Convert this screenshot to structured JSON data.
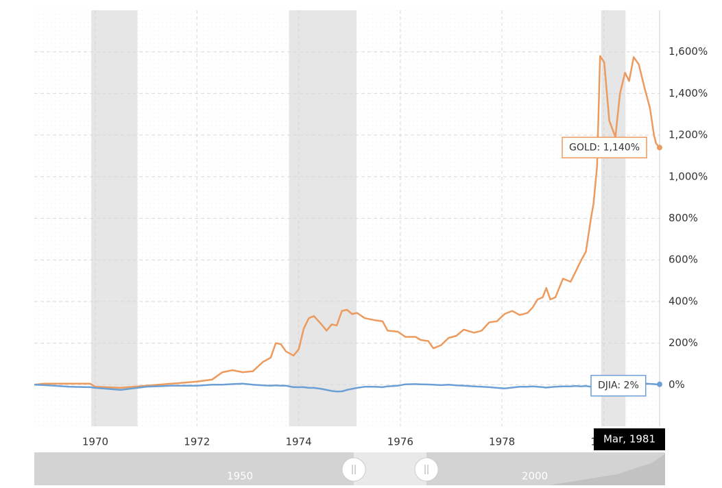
{
  "chart_data": {
    "type": "line",
    "x": [
      1968.8,
      1969.0,
      1969.5,
      1969.9,
      1970.0,
      1970.5,
      1971.0,
      1971.5,
      1972.0,
      1972.3,
      1972.5,
      1972.7,
      1972.9,
      1973.1,
      1973.3,
      1973.45,
      1973.55,
      1973.65,
      1973.75,
      1973.9,
      1974.0,
      1974.1,
      1974.2,
      1974.3,
      1974.45,
      1974.55,
      1974.65,
      1974.75,
      1974.85,
      1974.95,
      1975.05,
      1975.15,
      1975.3,
      1975.5,
      1975.65,
      1975.75,
      1975.95,
      1976.1,
      1976.3,
      1976.4,
      1976.55,
      1976.65,
      1976.8,
      1976.95,
      1977.1,
      1977.25,
      1977.45,
      1977.6,
      1977.75,
      1977.9,
      1978.05,
      1978.2,
      1978.35,
      1978.5,
      1978.6,
      1978.7,
      1978.8,
      1978.87,
      1978.95,
      1979.05,
      1979.2,
      1979.35,
      1979.45,
      1979.55,
      1979.65,
      1979.75,
      1979.8,
      1979.87,
      1979.93,
      1980.01,
      1980.11,
      1980.23,
      1980.32,
      1980.42,
      1980.5,
      1980.59,
      1980.69,
      1980.8,
      1980.91,
      1980.99,
      1981.03,
      1981.1
    ],
    "series": [
      {
        "label": "GOLD: 1,140%",
        "color": "#ec9a5d",
        "values": [
          0,
          5,
          5,
          5,
          -10,
          -15,
          -5,
          5,
          15,
          25,
          60,
          70,
          60,
          65,
          110,
          130,
          200,
          195,
          160,
          140,
          170,
          270,
          320,
          330,
          290,
          260,
          290,
          285,
          355,
          360,
          340,
          345,
          320,
          310,
          305,
          260,
          255,
          230,
          230,
          215,
          210,
          175,
          190,
          225,
          235,
          265,
          250,
          260,
          300,
          305,
          340,
          355,
          335,
          345,
          370,
          410,
          420,
          465,
          410,
          420,
          510,
          495,
          545,
          595,
          640,
          800,
          870,
          1050,
          1580,
          1550,
          1270,
          1190,
          1400,
          1500,
          1460,
          1575,
          1540,
          1430,
          1330,
          1200,
          1160,
          1140
        ]
      },
      {
        "label": "DJIA: 2%",
        "color": "#6b9fd6",
        "values": [
          0,
          -2,
          -10,
          -12,
          -15,
          -25,
          -10,
          -5,
          -5,
          0,
          0,
          3,
          5,
          0,
          -3,
          -5,
          -3,
          -5,
          -5,
          -12,
          -12,
          -12,
          -15,
          -15,
          -20,
          -25,
          -30,
          -33,
          -32,
          -25,
          -20,
          -15,
          -10,
          -10,
          -12,
          -8,
          -5,
          2,
          3,
          2,
          1,
          0,
          -2,
          0,
          -3,
          -5,
          -8,
          -10,
          -12,
          -15,
          -18,
          -14,
          -10,
          -10,
          -8,
          -10,
          -12,
          -14,
          -12,
          -10,
          -8,
          -8,
          -6,
          -8,
          -6,
          -10,
          -8,
          -6,
          -5,
          -4,
          -8,
          -10,
          -3,
          0,
          2,
          4,
          5,
          6,
          4,
          3,
          2,
          2
        ]
      }
    ],
    "recessions": [
      [
        1969.92,
        1970.83
      ],
      [
        1973.81,
        1975.14
      ],
      [
        1979.95,
        1980.43
      ]
    ],
    "xlim": [
      1968.8,
      1981.1
    ],
    "xticks": [
      1970,
      1972,
      1974,
      1976,
      1978,
      1980
    ],
    "ylim": [
      -200,
      1800
    ],
    "yticks": [
      {
        "value": 0,
        "label": "0%"
      },
      {
        "value": 200,
        "label": "200%"
      },
      {
        "value": 400,
        "label": "400%"
      },
      {
        "value": 600,
        "label": "600%"
      },
      {
        "value": 800,
        "label": "800%"
      },
      {
        "value": 1000,
        "label": "1,000%"
      },
      {
        "value": 1200,
        "label": "1,200%"
      },
      {
        "value": 1400,
        "label": "1,400%"
      },
      {
        "value": 1600,
        "label": "1,600%"
      }
    ],
    "grid": true,
    "crosshair_label": "Mar, 1981",
    "navigator_labels": [
      "1950",
      "2000"
    ]
  }
}
